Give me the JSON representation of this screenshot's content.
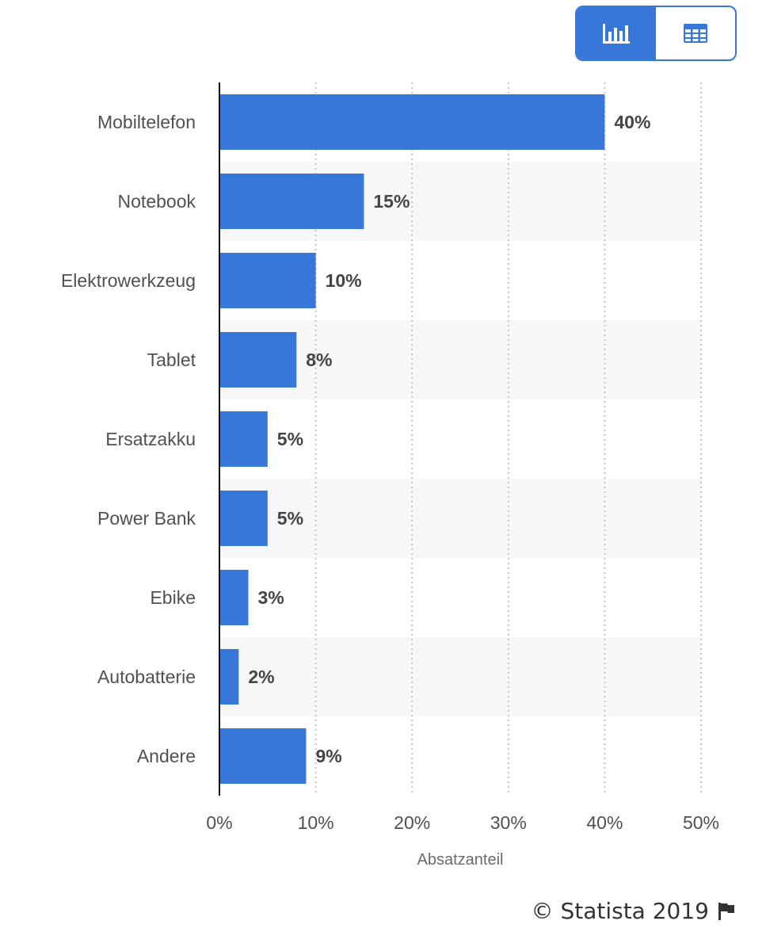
{
  "view_toggle": {
    "chart_icon": "bar-chart-icon",
    "table_icon": "table-grid-icon",
    "active": "chart"
  },
  "chart_data": {
    "type": "bar",
    "orientation": "horizontal",
    "categories": [
      "Mobiltelefon",
      "Notebook",
      "Elektrowerkzeug",
      "Tablet",
      "Ersatzakku",
      "Power Bank",
      "Ebike",
      "Autobatterie",
      "Andere"
    ],
    "values": [
      40,
      15,
      10,
      8,
      5,
      5,
      3,
      2,
      9
    ],
    "value_labels": [
      "40%",
      "15%",
      "10%",
      "8%",
      "5%",
      "5%",
      "3%",
      "2%",
      "9%"
    ],
    "xlim": [
      0,
      50
    ],
    "ticks": [
      0,
      10,
      20,
      30,
      40,
      50
    ],
    "tick_labels": [
      "0%",
      "10%",
      "20%",
      "30%",
      "40%",
      "50%"
    ],
    "xlabel": "Absatzanteil",
    "ylabel": "",
    "grid": "vertical dotted",
    "bar_color": "#3777d8",
    "stripe_color": "#f7f7f7"
  },
  "credit": {
    "text": "© Statista 2019",
    "flag_icon": "flag-icon"
  }
}
